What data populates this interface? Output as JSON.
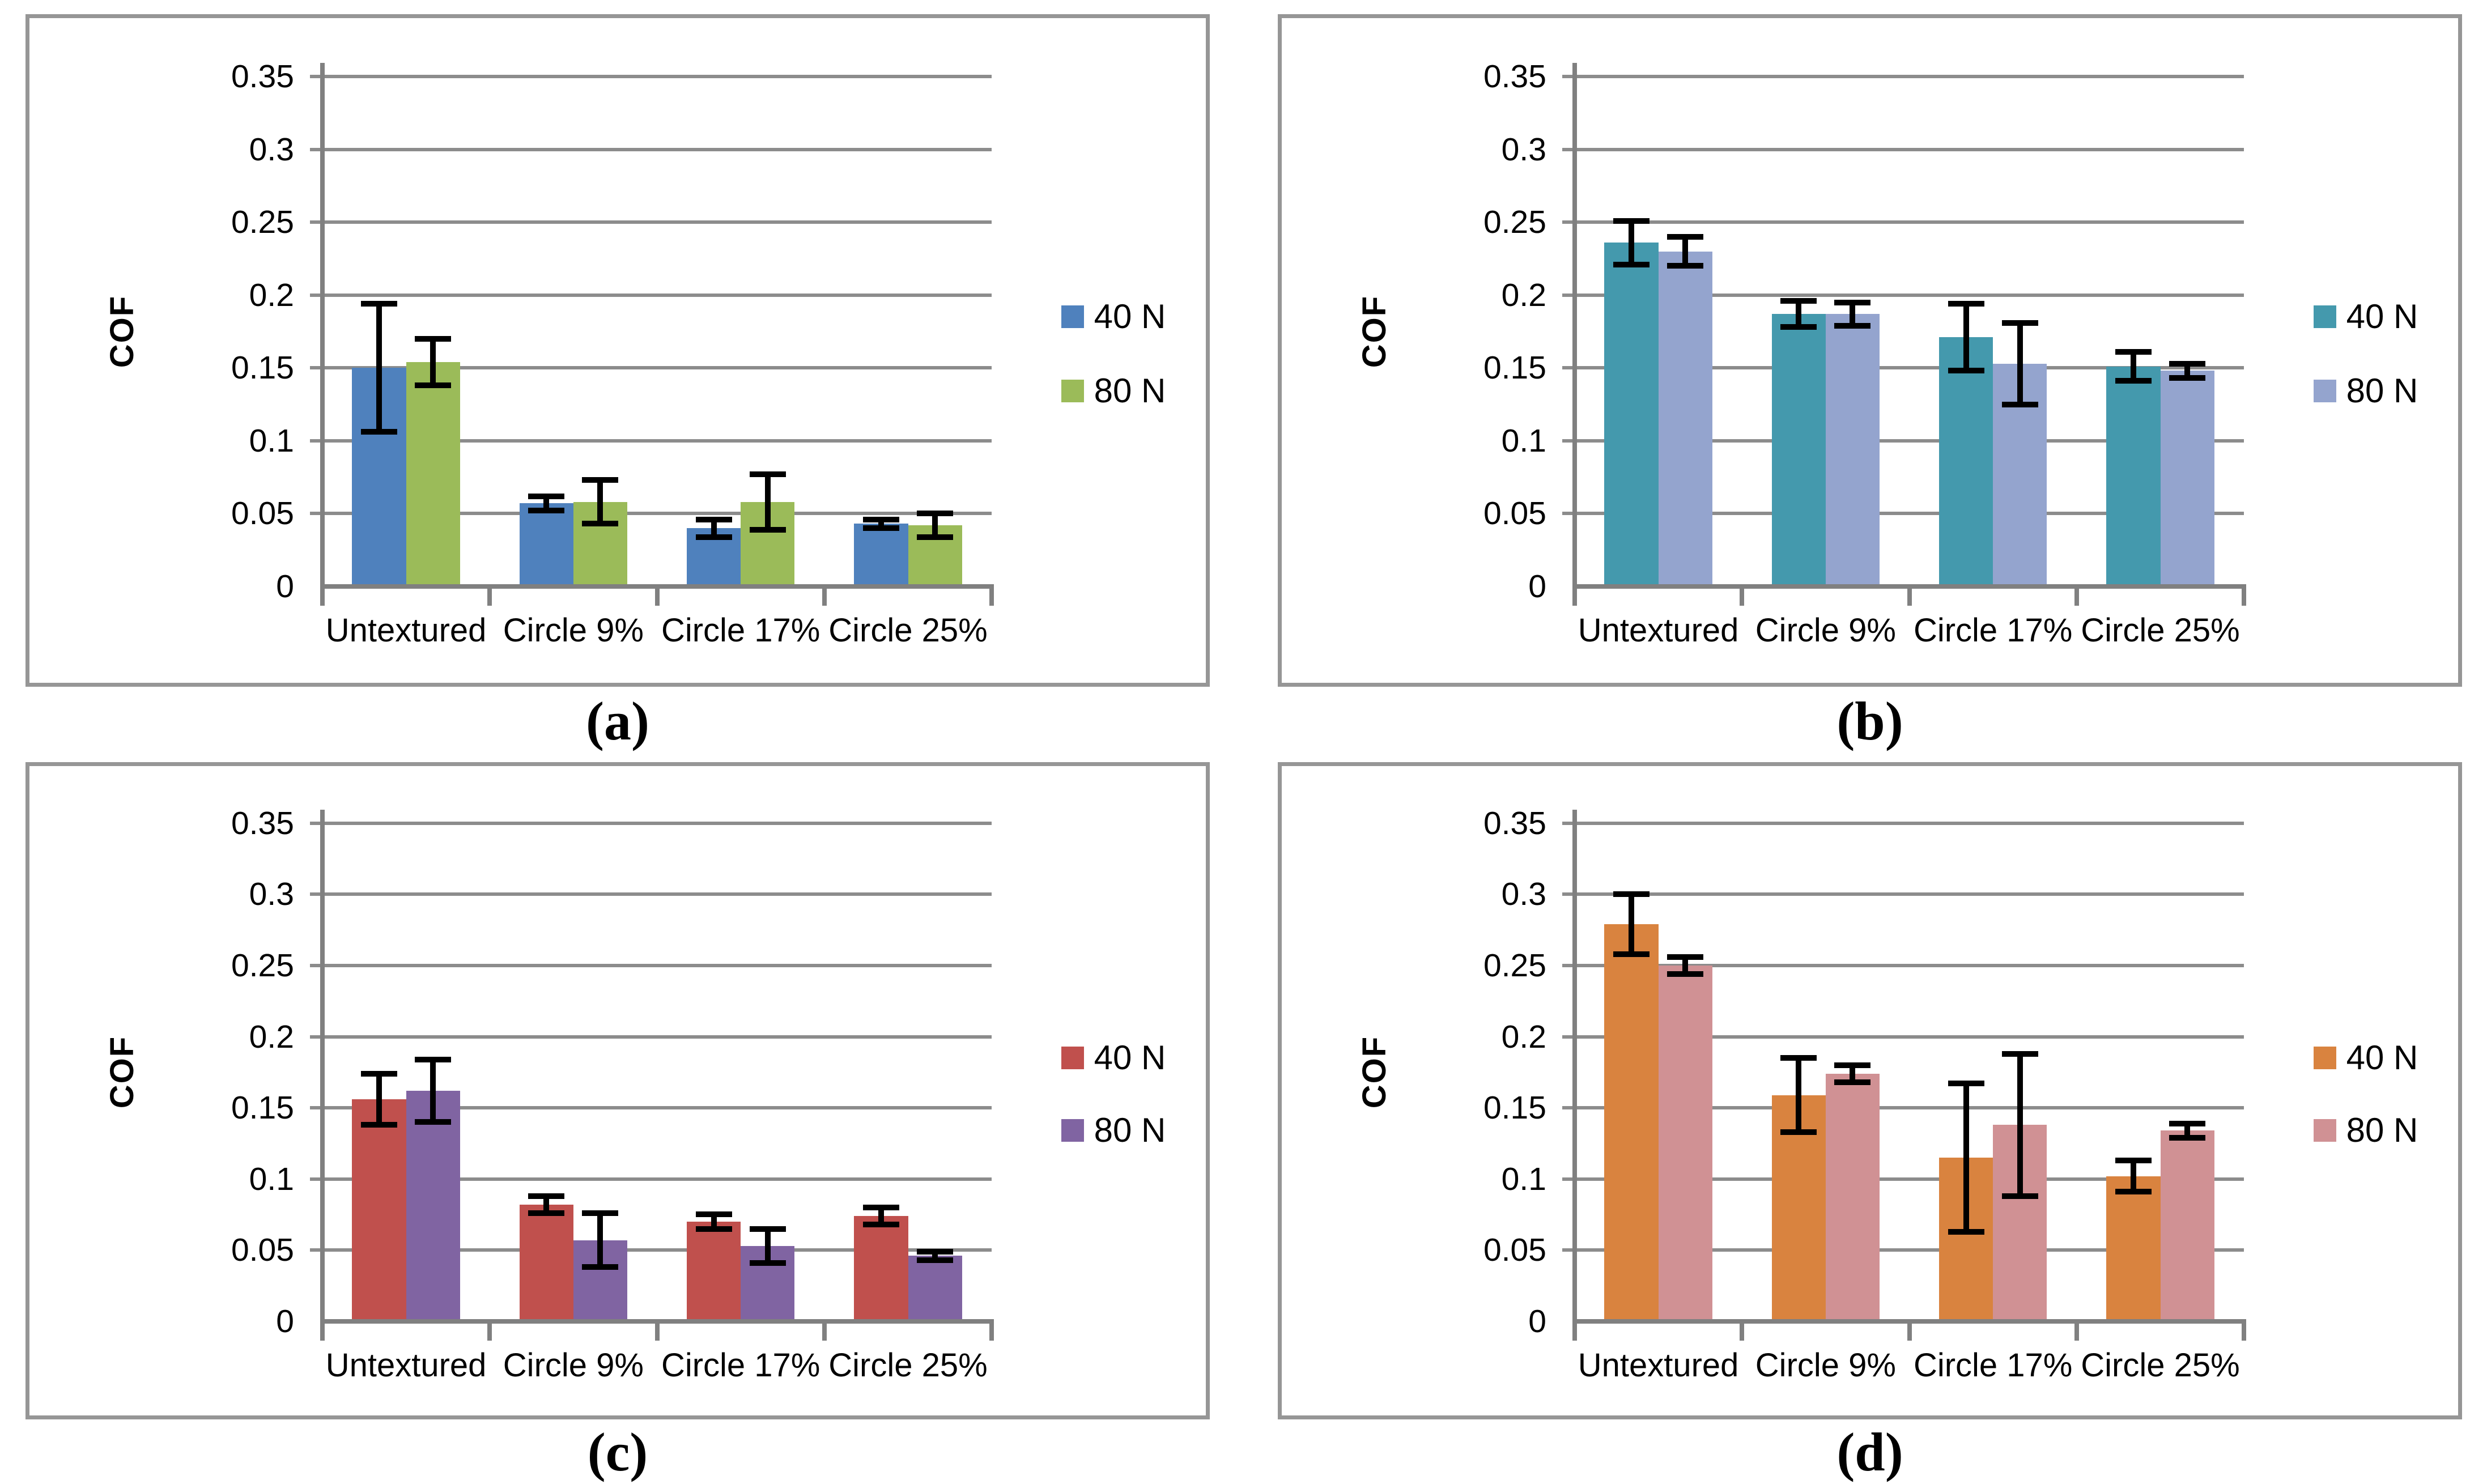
{
  "figure": {
    "description_visible_text_only": "Four bar chart panels labeled (a), (b), (c), (d)",
    "ylabel": "COF",
    "legend": [
      "40 N",
      "80 N"
    ]
  },
  "chart_data": [
    {
      "id": "a",
      "caption": "(a)",
      "type": "bar",
      "title": "",
      "xlabel": "",
      "ylabel": "COF",
      "ylim": [
        0,
        0.35
      ],
      "ytick_step": 0.05,
      "ytick_labels": [
        "0",
        "0.05",
        "0.1",
        "0.15",
        "0.2",
        "0.25",
        "0.3",
        "0.35"
      ],
      "grid": true,
      "legend_position": "right",
      "categories": [
        "Untextured",
        "Circle 9%",
        "Circle 17%",
        "Circle 25%"
      ],
      "series": [
        {
          "name": "40 N",
          "color": "#4F81BD",
          "values": [
            0.15,
            0.057,
            0.04,
            0.043
          ],
          "errors": [
            0.044,
            0.005,
            0.006,
            0.003
          ]
        },
        {
          "name": "80 N",
          "color": "#9BBB59",
          "values": [
            0.154,
            0.058,
            0.058,
            0.042
          ],
          "errors": [
            0.016,
            0.015,
            0.019,
            0.008
          ]
        }
      ]
    },
    {
      "id": "b",
      "caption": "(b)",
      "type": "bar",
      "title": "",
      "xlabel": "",
      "ylabel": "COF",
      "ylim": [
        0,
        0.35
      ],
      "ytick_step": 0.05,
      "ytick_labels": [
        "0",
        "0.05",
        "0.1",
        "0.15",
        "0.2",
        "0.25",
        "0.3",
        "0.35"
      ],
      "grid": true,
      "legend_position": "right",
      "categories": [
        "Untextured",
        "Circle 9%",
        "Circle 17%",
        "Circle 25%"
      ],
      "series": [
        {
          "name": "40 N",
          "color": "#4499AD",
          "values": [
            0.236,
            0.187,
            0.171,
            0.151
          ],
          "errors": [
            0.015,
            0.009,
            0.023,
            0.01
          ]
        },
        {
          "name": "80 N",
          "color": "#94A4CE",
          "values": [
            0.23,
            0.187,
            0.153,
            0.148
          ],
          "errors": [
            0.01,
            0.008,
            0.028,
            0.005
          ]
        }
      ]
    },
    {
      "id": "c",
      "caption": "(c)",
      "type": "bar",
      "title": "",
      "xlabel": "",
      "ylabel": "COF",
      "ylim": [
        0,
        0.35
      ],
      "ytick_step": 0.05,
      "ytick_labels": [
        "0",
        "0.05",
        "0.1",
        "0.15",
        "0.2",
        "0.25",
        "0.3",
        "0.35"
      ],
      "grid": true,
      "legend_position": "right",
      "categories": [
        "Untextured",
        "Circle 9%",
        "Circle 17%",
        "Circle 25%"
      ],
      "series": [
        {
          "name": "40 N",
          "color": "#C0504D",
          "values": [
            0.156,
            0.082,
            0.07,
            0.074
          ],
          "errors": [
            0.018,
            0.006,
            0.005,
            0.006
          ]
        },
        {
          "name": "80 N",
          "color": "#8064A2",
          "values": [
            0.162,
            0.057,
            0.053,
            0.046
          ],
          "errors": [
            0.022,
            0.019,
            0.012,
            0.003
          ]
        }
      ]
    },
    {
      "id": "d",
      "caption": "(d)",
      "type": "bar",
      "title": "",
      "xlabel": "",
      "ylabel": "COF",
      "ylim": [
        0,
        0.35
      ],
      "ytick_step": 0.05,
      "ytick_labels": [
        "0",
        "0.05",
        "0.1",
        "0.15",
        "0.2",
        "0.25",
        "0.3",
        "0.35"
      ],
      "grid": true,
      "legend_position": "right",
      "categories": [
        "Untextured",
        "Circle 9%",
        "Circle 17%",
        "Circle 25%"
      ],
      "series": [
        {
          "name": "40 N",
          "color": "#D9833F",
          "values": [
            0.279,
            0.159,
            0.115,
            0.102
          ],
          "errors": [
            0.021,
            0.026,
            0.052,
            0.011
          ]
        },
        {
          "name": "80 N",
          "color": "#D09194",
          "values": [
            0.25,
            0.174,
            0.138,
            0.134
          ],
          "errors": [
            0.006,
            0.006,
            0.05,
            0.005
          ]
        }
      ]
    }
  ]
}
